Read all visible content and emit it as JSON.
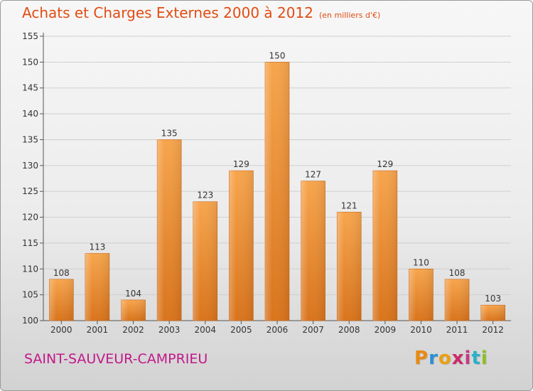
{
  "title": "Achats et Charges Externes 2000 à 2012",
  "subtitle": "(en milliers d'€)",
  "commune": "SAINT-SAUVEUR-CAMPRIEU",
  "brand": "Proxiti",
  "brand_colors": [
    "#e88a12",
    "#2a8fd6",
    "#e8a012",
    "#cc2a6a",
    "#c43a86",
    "#2bb0c8",
    "#8cbf24"
  ],
  "colors": {
    "title": "#e24c12",
    "commune": "#c2188a",
    "bar_light": "#f7a54d",
    "bar_dark": "#d9741c"
  },
  "chart_data": {
    "type": "bar",
    "categories": [
      "2000",
      "2001",
      "2002",
      "2003",
      "2004",
      "2005",
      "2006",
      "2007",
      "2008",
      "2009",
      "2010",
      "2011",
      "2012"
    ],
    "values": [
      108,
      113,
      104,
      135,
      123,
      129,
      150,
      127,
      121,
      129,
      110,
      108,
      103
    ],
    "ylim": [
      100,
      155
    ],
    "yticks": [
      100,
      105,
      110,
      115,
      120,
      125,
      130,
      135,
      140,
      145,
      150,
      155
    ],
    "grid": true,
    "xlabel": "",
    "ylabel": ""
  }
}
